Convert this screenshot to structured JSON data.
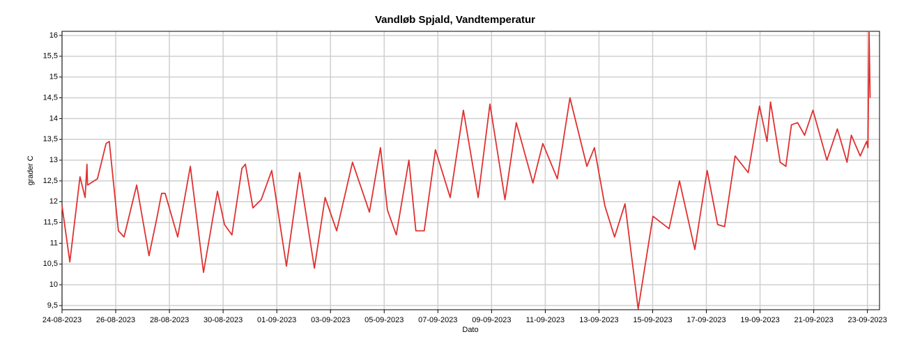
{
  "chart_data": {
    "type": "line",
    "title": "Vandløb Spjald, Vandtemperatur",
    "x_label": "Dato",
    "y_label": "grader C",
    "x": [
      0,
      0.29,
      0.67,
      0.86,
      0.93,
      0.95,
      1.32,
      1.64,
      1.76,
      2.1,
      2.31,
      2.78,
      3.24,
      3.53,
      3.71,
      3.84,
      4.31,
      4.78,
      5.27,
      5.79,
      6.05,
      6.33,
      6.7,
      6.83,
      7.11,
      7.42,
      7.81,
      8.36,
      8.85,
      9.4,
      9.8,
      10.23,
      10.82,
      11.45,
      11.86,
      12.12,
      12.45,
      12.92,
      13.18,
      13.49,
      13.91,
      14.46,
      14.95,
      15.5,
      15.94,
      16.5,
      16.92,
      17.54,
      17.91,
      18.45,
      18.92,
      19.55,
      19.83,
      20.22,
      20.58,
      20.97,
      21.46,
      22.01,
      22.61,
      23.0,
      23.57,
      24.03,
      24.42,
      24.68,
      25.07,
      25.56,
      25.98,
      26.26,
      26.39,
      26.75,
      26.96,
      27.17,
      27.4,
      27.66,
      27.97,
      28.49,
      28.88,
      29.24,
      29.4,
      29.73,
      29.97,
      30.02,
      30.06,
      30.1
    ],
    "series": [
      {
        "name": "Vandtemperatur",
        "color": "#e03030",
        "values": [
          11.9,
          10.55,
          12.6,
          12.1,
          12.9,
          12.4,
          12.55,
          13.4,
          13.45,
          11.3,
          11.15,
          12.4,
          10.7,
          11.6,
          12.2,
          12.2,
          11.15,
          12.85,
          10.3,
          12.25,
          11.45,
          11.2,
          12.8,
          12.9,
          11.85,
          12.05,
          12.75,
          10.45,
          12.7,
          10.4,
          12.1,
          11.3,
          12.95,
          11.75,
          13.3,
          11.8,
          11.2,
          13.0,
          11.3,
          11.3,
          13.25,
          12.1,
          14.2,
          12.1,
          14.35,
          12.05,
          13.9,
          12.45,
          13.4,
          12.55,
          14.5,
          12.85,
          13.3,
          11.9,
          11.15,
          11.95,
          9.42,
          11.65,
          11.35,
          12.5,
          10.85,
          12.75,
          11.45,
          11.4,
          13.1,
          12.7,
          14.3,
          13.45,
          14.4,
          12.95,
          12.85,
          13.85,
          13.9,
          13.6,
          14.2,
          13.0,
          13.75,
          12.95,
          13.6,
          13.1,
          13.45,
          13.3,
          16.1,
          14.5
        ]
      }
    ],
    "xlim": [
      0,
      30.45
    ],
    "ylim": [
      9.4,
      16.1
    ],
    "xticks": [
      {
        "value": 0,
        "label": "24-08-2023"
      },
      {
        "value": 2,
        "label": "26-08-2023"
      },
      {
        "value": 4,
        "label": "28-08-2023"
      },
      {
        "value": 6,
        "label": "30-08-2023"
      },
      {
        "value": 8,
        "label": "01-09-2023"
      },
      {
        "value": 10,
        "label": "03-09-2023"
      },
      {
        "value": 12,
        "label": "05-09-2023"
      },
      {
        "value": 14,
        "label": "07-09-2023"
      },
      {
        "value": 16,
        "label": "09-09-2023"
      },
      {
        "value": 18,
        "label": "11-09-2023"
      },
      {
        "value": 20,
        "label": "13-09-2023"
      },
      {
        "value": 22,
        "label": "15-09-2023"
      },
      {
        "value": 24,
        "label": "17-09-2023"
      },
      {
        "value": 26,
        "label": "19-09-2023"
      },
      {
        "value": 28,
        "label": "21-09-2023"
      },
      {
        "value": 30,
        "label": "23-09-2023"
      }
    ],
    "yticks": [
      {
        "value": 9.5,
        "label": "9,5"
      },
      10,
      {
        "value": 10.5,
        "label": "10,5"
      },
      11,
      {
        "value": 11.5,
        "label": "11,5"
      },
      12,
      {
        "value": 12.5,
        "label": "12,5"
      },
      13,
      {
        "value": 13.5,
        "label": "13,5"
      },
      14,
      {
        "value": 14.5,
        "label": "14,5"
      },
      15,
      {
        "value": 15.5,
        "label": "15,5"
      },
      16
    ],
    "grid": true
  }
}
